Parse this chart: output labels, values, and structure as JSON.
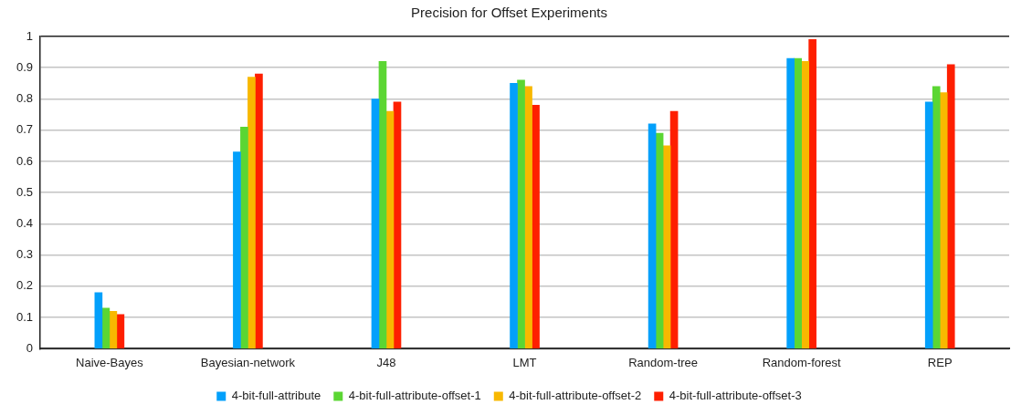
{
  "chart_data": {
    "type": "bar",
    "title": "Precision for Offset Experiments",
    "categories": [
      "Naive-Bayes",
      "Bayesian-network",
      "J48",
      "LMT",
      "Random-tree",
      "Random-forest",
      "REP"
    ],
    "series": [
      {
        "name": "4-bit-full-attribute",
        "color": "#03a0fb",
        "values": [
          0.18,
          0.63,
          0.8,
          0.85,
          0.72,
          0.93,
          0.79
        ]
      },
      {
        "name": "4-bit-full-attribute-offset-1",
        "color": "#5bd633",
        "values": [
          0.13,
          0.71,
          0.92,
          0.86,
          0.69,
          0.93,
          0.84
        ]
      },
      {
        "name": "4-bit-full-attribute-offset-2",
        "color": "#f8b800",
        "values": [
          0.12,
          0.87,
          0.76,
          0.84,
          0.65,
          0.92,
          0.82
        ]
      },
      {
        "name": "4-bit-full-attribute-offset-3",
        "color": "#fe1f00",
        "values": [
          0.11,
          0.88,
          0.79,
          0.78,
          0.76,
          0.99,
          0.91
        ]
      }
    ],
    "ylim": [
      0,
      1
    ],
    "yticks": [
      0,
      0.1,
      0.2,
      0.3,
      0.4,
      0.5,
      0.6,
      0.7,
      0.8,
      0.9,
      1
    ],
    "grid": "y",
    "legend": "bottom"
  }
}
